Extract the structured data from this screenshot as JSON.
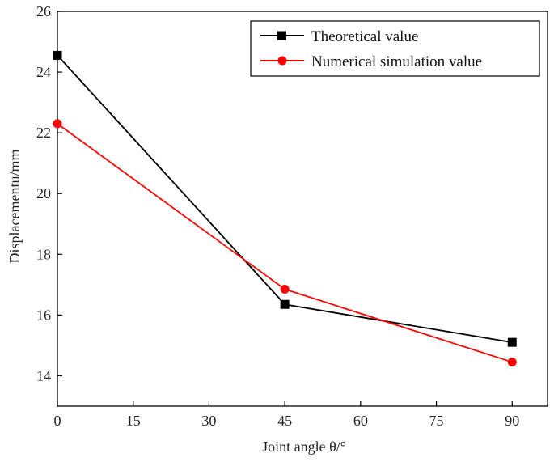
{
  "chart_data": {
    "type": "line",
    "title": "",
    "xlabel": "Joint angle θ/°",
    "ylabel": "Displacementu/mm",
    "xlim": [
      0,
      97
    ],
    "ylim": [
      13,
      26
    ],
    "xticks": [
      0,
      15,
      30,
      45,
      60,
      75,
      90
    ],
    "yticks": [
      14,
      16,
      18,
      20,
      22,
      24,
      26
    ],
    "xtick_labels": [
      "0",
      "15",
      "30",
      "45",
      "60",
      "75",
      "90"
    ],
    "ytick_labels": [
      "14",
      "16",
      "18",
      "20",
      "22",
      "24",
      "26"
    ],
    "grid": false,
    "legend_position": "top-right",
    "x": [
      0,
      45,
      90
    ],
    "series": [
      {
        "name": "Theoretical value",
        "values": [
          24.55,
          16.35,
          15.1
        ],
        "color": "#000000",
        "marker": "square"
      },
      {
        "name": "Numerical simulation value",
        "values": [
          22.3,
          16.85,
          14.45
        ],
        "color": "#ff0000",
        "marker": "circle"
      }
    ]
  }
}
